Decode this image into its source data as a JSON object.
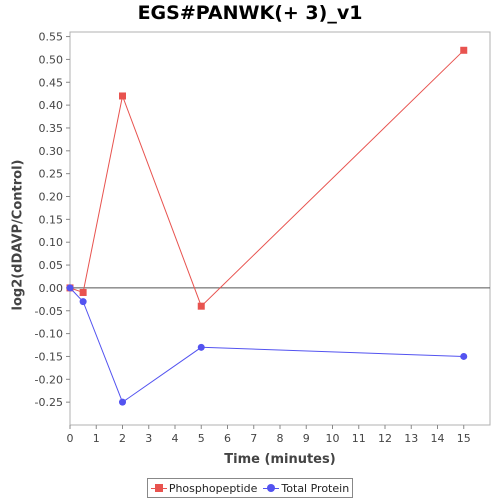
{
  "chart_data": {
    "type": "line",
    "title": "EGS#PANWK(+ 3)_v1",
    "xlabel": "Time (minutes)",
    "ylabel": "log2(dDAVP/Control)",
    "xlim": [
      0,
      16
    ],
    "ylim": [
      -0.3,
      0.56
    ],
    "x_ticks": [
      0,
      1,
      2,
      3,
      4,
      5,
      6,
      7,
      8,
      9,
      10,
      11,
      12,
      13,
      14,
      15
    ],
    "y_ticks": [
      -0.25,
      -0.2,
      -0.15,
      -0.1,
      -0.05,
      0.0,
      0.05,
      0.1,
      0.15,
      0.2,
      0.25,
      0.3,
      0.35,
      0.4,
      0.45,
      0.5,
      0.55
    ],
    "grid": false,
    "zero_line": true,
    "legend_position": "bottom",
    "series": [
      {
        "name": "Phosphopeptide",
        "color": "#e8534f",
        "marker": "square",
        "x": [
          0,
          0.5,
          2,
          5,
          15
        ],
        "y": [
          0.0,
          -0.01,
          0.42,
          -0.04,
          0.52
        ]
      },
      {
        "name": "Total Protein",
        "color": "#5353f0",
        "marker": "circle",
        "x": [
          0,
          0.5,
          2,
          5,
          15
        ],
        "y": [
          0.0,
          -0.03,
          -0.25,
          -0.13,
          -0.15
        ]
      }
    ]
  }
}
